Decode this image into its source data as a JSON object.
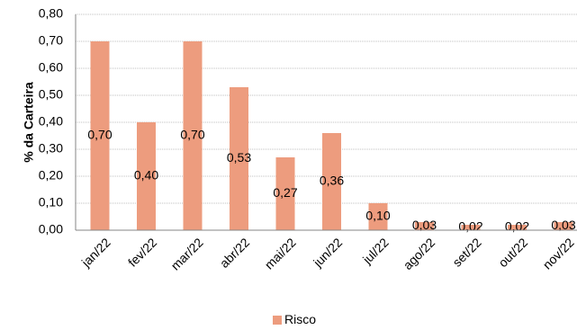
{
  "chart_data": {
    "type": "bar",
    "categories": [
      "jan/22",
      "fev/22",
      "mar/22",
      "abr/22",
      "mai/22",
      "jun/22",
      "jul/22",
      "ago/22",
      "set/22",
      "out/22",
      "nov/22"
    ],
    "series": [
      {
        "name": "Risco",
        "values": [
          0.7,
          0.4,
          0.7,
          0.53,
          0.27,
          0.36,
          0.1,
          0.03,
          0.02,
          0.02,
          0.03
        ],
        "labels": [
          "0,70",
          "0,40",
          "0,70",
          "0,53",
          "0,27",
          "0,36",
          "0,10",
          "0,03",
          "0,02",
          "0,02",
          "0,03"
        ],
        "color": "#ED9C7E"
      }
    ],
    "ylabel": "% da Carteira",
    "xlabel": "",
    "ylim": [
      0,
      0.8
    ],
    "yticks": [
      "0,00",
      "0,10",
      "0,20",
      "0,30",
      "0,40",
      "0,50",
      "0,60",
      "0,70",
      "0,80"
    ],
    "grid": true,
    "legend_position": "bottom"
  }
}
